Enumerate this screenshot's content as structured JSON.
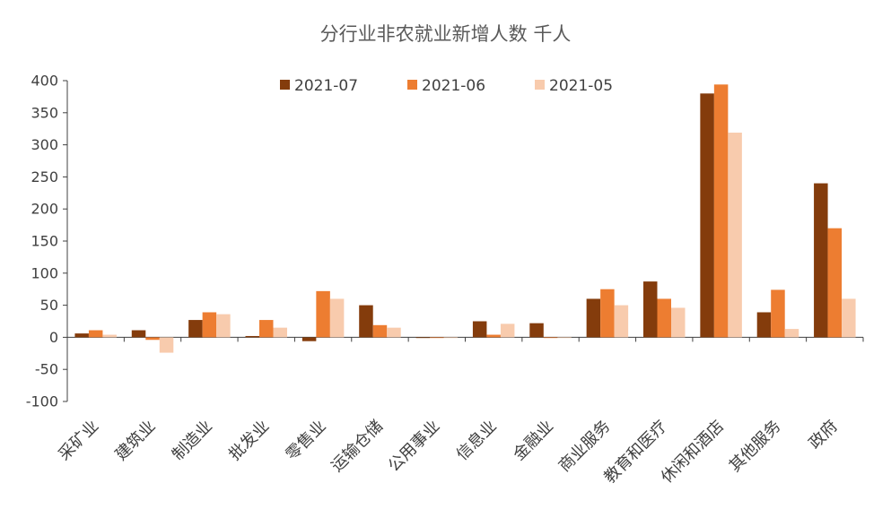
{
  "chart_data": {
    "type": "bar",
    "title": "分行业非农就业新增人数 千人",
    "categories": [
      "采矿业",
      "建筑业",
      "制造业",
      "批发业",
      "零售业",
      "运输仓储",
      "公用事业",
      "信息业",
      "金融业",
      "商业服务",
      "教育和医疗",
      "休闲和酒店",
      "其他服务",
      "政府"
    ],
    "series": [
      {
        "name": "2021-07",
        "color": "#843C0C",
        "values": [
          6,
          11,
          27,
          2,
          -6,
          50,
          -1,
          25,
          22,
          60,
          87,
          380,
          39,
          240
        ]
      },
      {
        "name": "2021-06",
        "color": "#ED7D31",
        "values": [
          11,
          -4,
          39,
          27,
          72,
          19,
          -1,
          4,
          -1,
          75,
          60,
          394,
          74,
          170
        ]
      },
      {
        "name": "2021-05",
        "color": "#F8CBAD",
        "values": [
          4,
          -24,
          36,
          15,
          60,
          15,
          0,
          21,
          0,
          50,
          46,
          319,
          13,
          60
        ]
      }
    ],
    "ylim": [
      -100,
      400
    ],
    "yticks": [
      -100,
      -50,
      0,
      50,
      100,
      150,
      200,
      250,
      300,
      350,
      400
    ],
    "xlabel": "",
    "ylabel": "",
    "legend_position": "top-center",
    "grid": false
  }
}
